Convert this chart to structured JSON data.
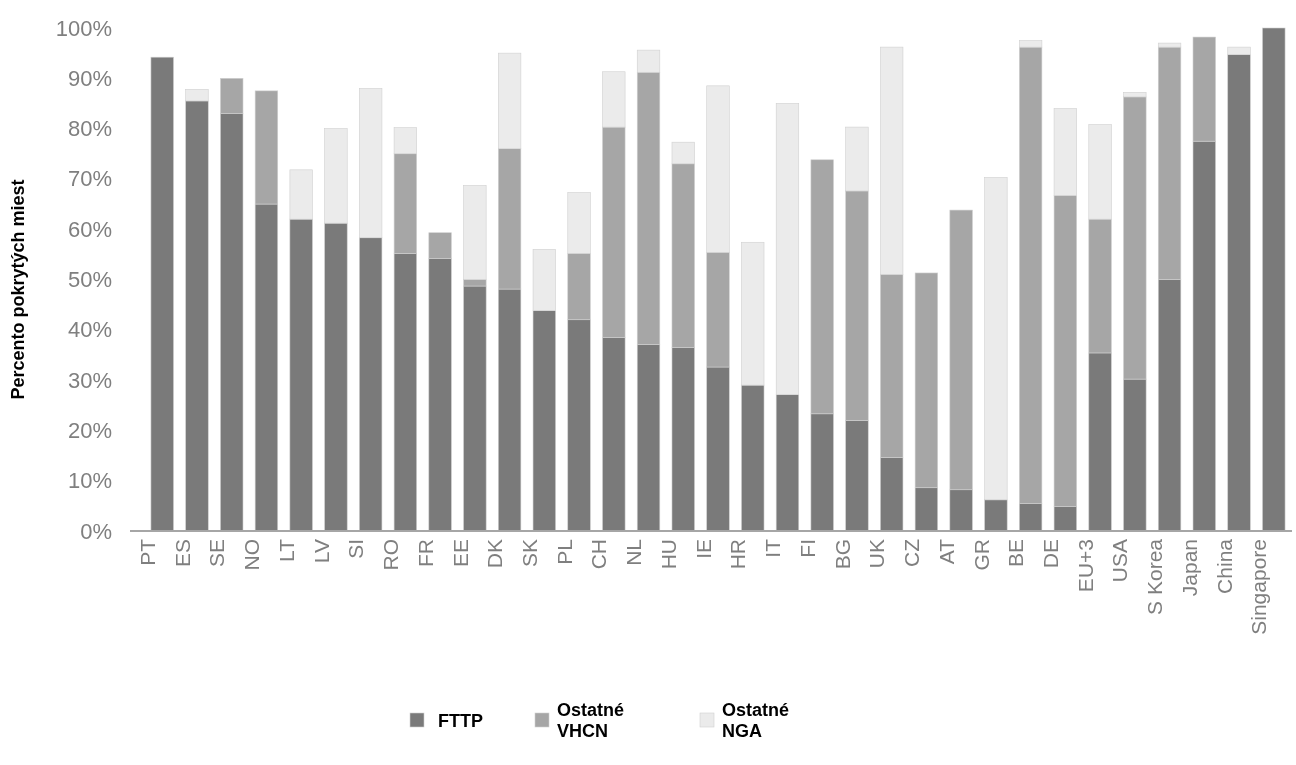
{
  "chart_data": {
    "type": "bar",
    "stacked": true,
    "ylabel": "Percento pokrytých miest",
    "categories": [
      "PT",
      "ES",
      "SE",
      "NO",
      "LT",
      "LV",
      "SI",
      "RO",
      "FR",
      "EE",
      "DK",
      "SK",
      "PL",
      "CH",
      "NL",
      "HU",
      "IE",
      "HR",
      "IT",
      "FI",
      "BG",
      "UK",
      "CZ",
      "AT",
      "GR",
      "BE",
      "DE",
      "EU+3",
      "USA",
      "S Korea",
      "Japan",
      "China",
      "Singapore"
    ],
    "series": [
      {
        "name": "FTTP",
        "color": "#7a7a7a",
        "values": [
          94.2,
          85.5,
          83,
          65,
          62,
          61.2,
          58.3,
          55.2,
          54.2,
          48.7,
          48.1,
          43.8,
          42,
          38.5,
          37.1,
          36.5,
          32.6,
          29,
          27.1,
          23.3,
          22,
          14.6,
          8.6,
          8.2,
          6.2,
          5.5,
          4.9,
          35.4,
          30.2,
          50,
          77.5,
          94.7,
          100
        ]
      },
      {
        "name": "Ostatné VHCN",
        "color": "#a6a6a6",
        "values": [
          0,
          0,
          7,
          22.5,
          0,
          0,
          0,
          19.8,
          5.1,
          1.3,
          27.9,
          0,
          13.2,
          41.8,
          54.1,
          36.5,
          22.8,
          0,
          0,
          50.5,
          45.6,
          36.4,
          42.7,
          55.6,
          0,
          90.7,
          61.8,
          26.6,
          56.1,
          46.2,
          20.7,
          0,
          0
        ]
      },
      {
        "name": "Ostatné NGA",
        "color": "#ebebeb",
        "values": [
          0,
          2.3,
          0,
          0,
          9.8,
          18.8,
          29.7,
          5.2,
          0,
          18.7,
          19,
          12.2,
          12.1,
          11,
          4.4,
          4.3,
          33.1,
          28.4,
          57.9,
          0,
          12.7,
          45.2,
          0,
          0,
          64.1,
          1.3,
          17.3,
          18.8,
          0.9,
          0.8,
          0,
          1.5,
          0
        ]
      }
    ],
    "ylim": [
      0,
      100
    ],
    "yticks": [
      {
        "value": 0,
        "label": "0%"
      },
      {
        "value": 10,
        "label": "10%"
      },
      {
        "value": 20,
        "label": "20%"
      },
      {
        "value": 30,
        "label": "30%"
      },
      {
        "value": 40,
        "label": "40%"
      },
      {
        "value": 50,
        "label": "50%"
      },
      {
        "value": 60,
        "label": "60%"
      },
      {
        "value": 70,
        "label": "70%"
      },
      {
        "value": 80,
        "label": "80%"
      },
      {
        "value": 90,
        "label": "90%"
      },
      {
        "value": 100,
        "label": "100%"
      }
    ],
    "legend": "bottom"
  }
}
